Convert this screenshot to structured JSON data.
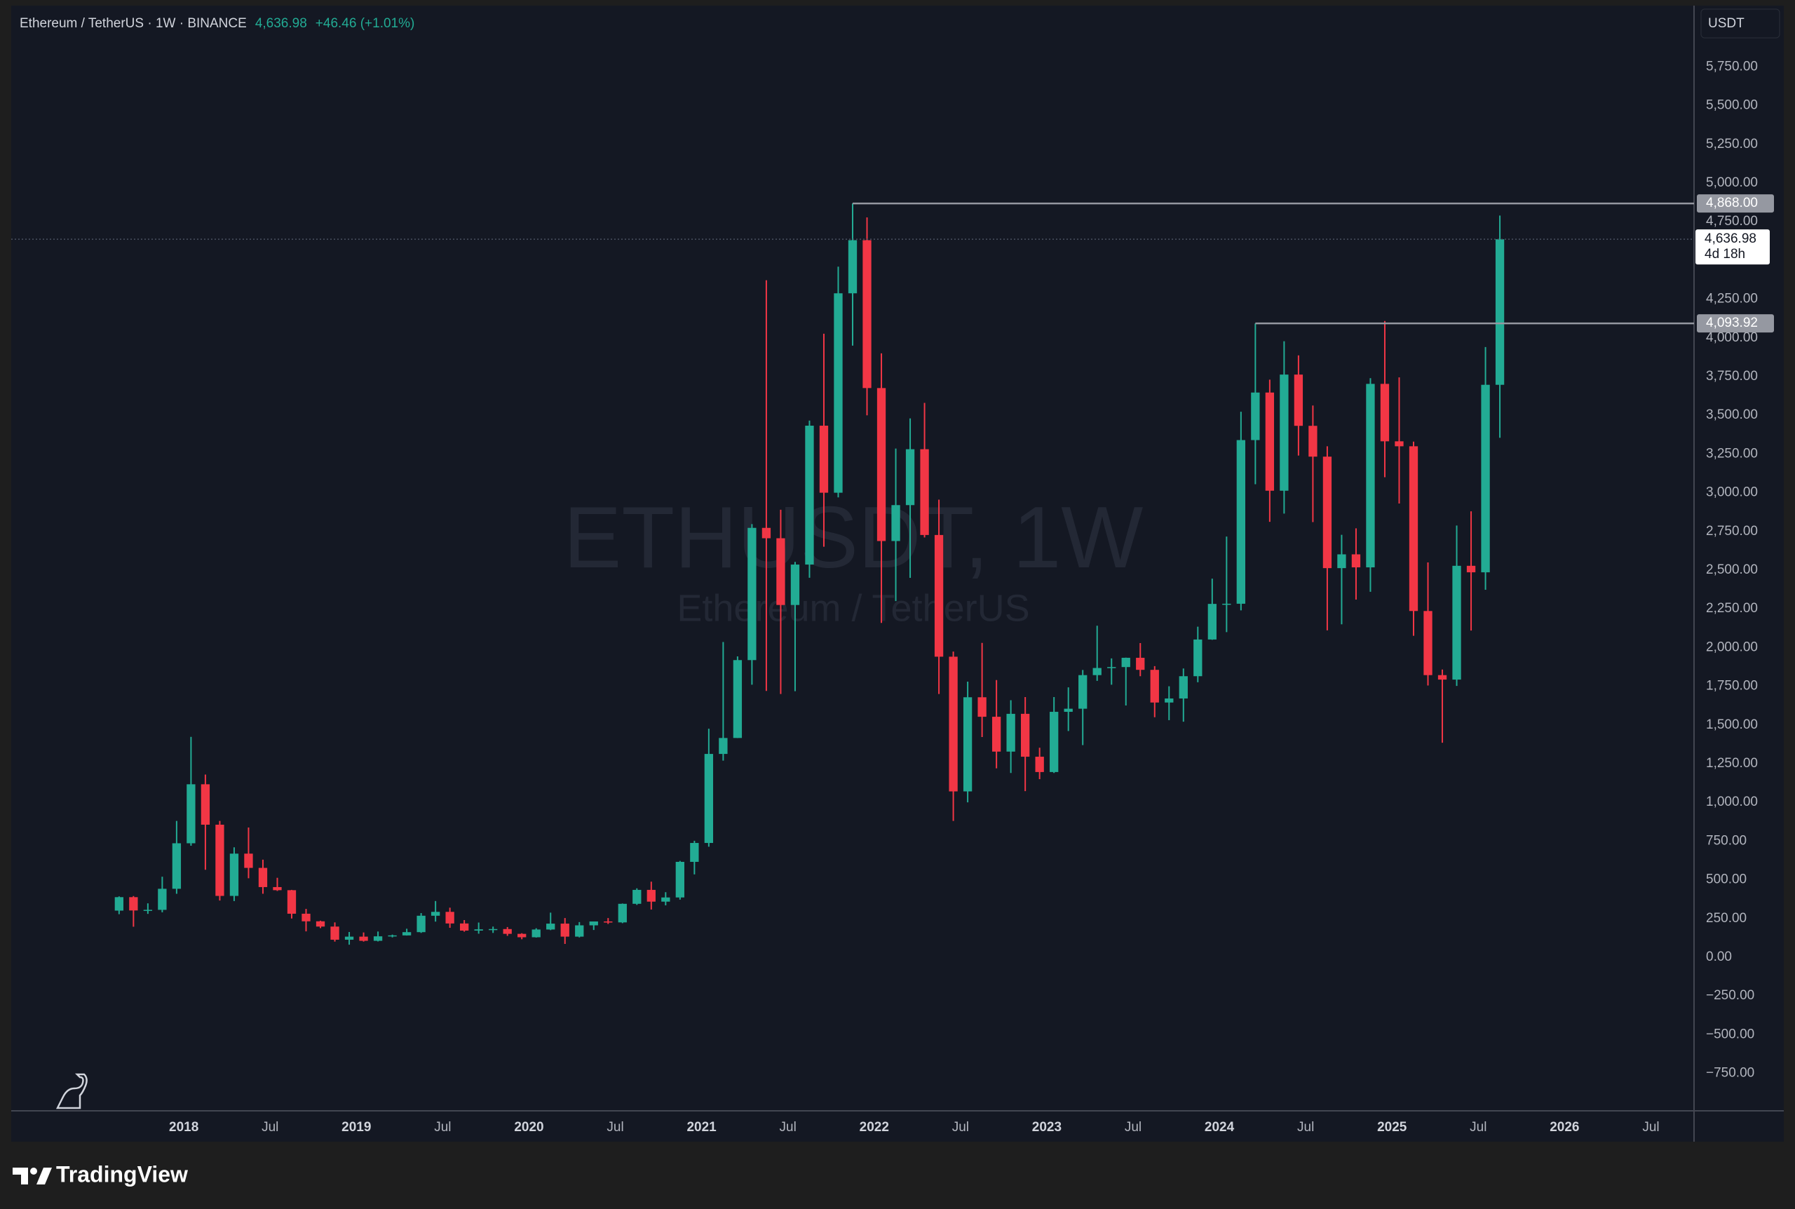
{
  "chart_data": {
    "type": "candlestick",
    "title": "Ethereum / TetherUS · 1W · BINANCE",
    "change": "+46.46 (+1.01%)",
    "currency_button": "USDT",
    "watermark": "ETHUSDT, 1W",
    "watermark_subtitle": "Ethereum / TetherUS",
    "brand": "TradingView",
    "up_color": "#22ab94",
    "down_color": "#f23645",
    "x": [
      "2017-08",
      "2017-09",
      "2017-10",
      "2017-11",
      "2017-12",
      "2018-01",
      "2018-02",
      "2018-03",
      "2018-04",
      "2018-05",
      "2018-06",
      "2018-07",
      "2018-08",
      "2018-09",
      "2018-10",
      "2018-11",
      "2018-12",
      "2019-01",
      "2019-02",
      "2019-03",
      "2019-04",
      "2019-05",
      "2019-06",
      "2019-07",
      "2019-08",
      "2019-09",
      "2019-10",
      "2019-11",
      "2019-12",
      "2020-01",
      "2020-02",
      "2020-03",
      "2020-04",
      "2020-05",
      "2020-06",
      "2020-07",
      "2020-08",
      "2020-09",
      "2020-10",
      "2020-11",
      "2020-12",
      "2021-01",
      "2021-02",
      "2021-03",
      "2021-04",
      "2021-05",
      "2021-06",
      "2021-07",
      "2021-08",
      "2021-09",
      "2021-10",
      "2021-11",
      "2021-12",
      "2022-01",
      "2022-02",
      "2022-03",
      "2022-04",
      "2022-05",
      "2022-06",
      "2022-07",
      "2022-08",
      "2022-09",
      "2022-10",
      "2022-11",
      "2022-12",
      "2023-01",
      "2023-02",
      "2023-03",
      "2023-04",
      "2023-05",
      "2023-06",
      "2023-07",
      "2023-08",
      "2023-09",
      "2023-10",
      "2023-11",
      "2023-12",
      "2024-01",
      "2024-02",
      "2024-03",
      "2024-04",
      "2024-05",
      "2024-06",
      "2024-07",
      "2024-08",
      "2024-09",
      "2024-10",
      "2024-11",
      "2024-12",
      "2025-01",
      "2025-02",
      "2025-03",
      "2025-04",
      "2025-05",
      "2025-06",
      "2025-07",
      "2025-08"
    ],
    "open": [
      301,
      388,
      302,
      306,
      442,
      736,
      1117,
      856,
      396,
      669,
      577,
      453,
      433,
      281,
      232,
      198,
      113,
      133,
      106,
      135,
      141,
      162,
      268,
      293,
      218,
      172,
      180,
      182,
      151,
      129,
      179,
      217,
      133,
      206,
      231,
      225,
      345,
      435,
      359,
      386,
      616,
      738,
      1313,
      1416,
      1919,
      2773,
      2706,
      2275,
      2536,
      3433,
      3000,
      4288,
      4631,
      3676,
      2688,
      2920,
      3281,
      2727,
      1941,
      1071,
      1679,
      1553,
      1328,
      1572,
      1295,
      1196,
      1585,
      1605,
      1822,
      1868,
      1874,
      1934,
      1856,
      1645,
      1671,
      1815,
      2052,
      2282,
      2283,
      3340,
      3647,
      3013,
      3763,
      3432,
      3233,
      2513,
      2602,
      2518,
      3703,
      3332,
      3300,
      2236,
      1822,
      1793,
      2528,
      2486,
      3697
    ],
    "high": [
      393,
      395,
      348,
      520,
      880,
      1423,
      1180,
      880,
      710,
      838,
      630,
      513,
      435,
      312,
      236,
      225,
      163,
      160,
      166,
      146,
      184,
      285,
      363,
      320,
      240,
      224,
      198,
      195,
      155,
      187,
      288,
      253,
      227,
      228,
      253,
      347,
      445,
      488,
      420,
      622,
      752,
      1476,
      2036,
      1943,
      2797,
      4372,
      2890,
      2553,
      3466,
      4027,
      4460,
      4868,
      4778,
      3900,
      3285,
      3480,
      3580,
      2955,
      1974,
      1780,
      2030,
      1790,
      1660,
      1680,
      1353,
      1680,
      1743,
      1855,
      2141,
      1930,
      1935,
      2029,
      1880,
      1750,
      1865,
      2135,
      2445,
      2717,
      3523,
      4093,
      3730,
      3978,
      3887,
      3563,
      3300,
      2728,
      2770,
      3740,
      4109,
      3745,
      3330,
      2550,
      1858,
      2788,
      2880,
      3941,
      4790
    ],
    "low": [
      278,
      197,
      280,
      290,
      410,
      720,
      565,
      366,
      363,
      510,
      410,
      428,
      250,
      167,
      188,
      101,
      81,
      101,
      102,
      128,
      140,
      157,
      230,
      190,
      165,
      152,
      157,
      138,
      116,
      127,
      175,
      86,
      128,
      176,
      215,
      220,
      338,
      308,
      335,
      372,
      535,
      714,
      1270,
      1416,
      1760,
      1720,
      1700,
      1718,
      2451,
      2651,
      2970,
      3950,
      3500,
      2159,
      2300,
      2450,
      2711,
      1700,
      880,
      1000,
      1422,
      1220,
      1190,
      1073,
      1150,
      1190,
      1461,
      1370,
      1785,
      1760,
      1626,
      1815,
      1550,
      1531,
      1521,
      1776,
      2050,
      2100,
      2240,
      3055,
      2812,
      2865,
      3240,
      2810,
      2111,
      2150,
      2310,
      2360,
      3100,
      2930,
      2076,
      1755,
      1385,
      1752,
      2110,
      2373,
      3355
    ],
    "close": [
      388,
      302,
      306,
      442,
      736,
      1117,
      856,
      396,
      669,
      577,
      453,
      433,
      281,
      232,
      198,
      113,
      133,
      106,
      135,
      141,
      162,
      268,
      293,
      218,
      172,
      180,
      182,
      151,
      129,
      179,
      217,
      133,
      206,
      231,
      225,
      345,
      435,
      359,
      386,
      616,
      738,
      1313,
      1416,
      1919,
      2773,
      2706,
      2275,
      2536,
      3433,
      3000,
      4288,
      4631,
      3676,
      2688,
      2920,
      3281,
      2727,
      1941,
      1071,
      1679,
      1553,
      1328,
      1572,
      1295,
      1196,
      1585,
      1605,
      1822,
      1868,
      1874,
      1934,
      1856,
      1645,
      1671,
      1815,
      2052,
      2282,
      2283,
      3340,
      3647,
      3013,
      3763,
      3432,
      3233,
      2513,
      2602,
      2518,
      3703,
      3332,
      3300,
      2236,
      1822,
      1793,
      2528,
      2486,
      3697,
      4636.98
    ],
    "xlim": [
      "2017-01",
      "2026-10"
    ],
    "xticks": [
      {
        "value": "2018-01",
        "label": "2018"
      },
      {
        "value": "2018-07",
        "label": "Jul"
      },
      {
        "value": "2019-01",
        "label": "2019"
      },
      {
        "value": "2019-07",
        "label": "Jul"
      },
      {
        "value": "2020-01",
        "label": "2020"
      },
      {
        "value": "2020-07",
        "label": "Jul"
      },
      {
        "value": "2021-01",
        "label": "2021"
      },
      {
        "value": "2021-07",
        "label": "Jul"
      },
      {
        "value": "2022-01",
        "label": "2022"
      },
      {
        "value": "2022-07",
        "label": "Jul"
      },
      {
        "value": "2023-01",
        "label": "2023"
      },
      {
        "value": "2023-07",
        "label": "Jul"
      },
      {
        "value": "2024-01",
        "label": "2024"
      },
      {
        "value": "2024-07",
        "label": "Jul"
      },
      {
        "value": "2025-01",
        "label": "2025"
      },
      {
        "value": "2025-07",
        "label": "Jul"
      },
      {
        "value": "2026-01",
        "label": "2026"
      },
      {
        "value": "2026-07",
        "label": "Jul"
      }
    ],
    "ylim": [
      -992,
      6146
    ],
    "yticks": [
      {
        "value": -750,
        "label": "−750.00"
      },
      {
        "value": -500,
        "label": "−500.00"
      },
      {
        "value": -250,
        "label": "−250.00"
      },
      {
        "value": 0,
        "label": "0.00"
      },
      {
        "value": 250,
        "label": "250.00"
      },
      {
        "value": 500,
        "label": "500.00"
      },
      {
        "value": 750,
        "label": "750.00"
      },
      {
        "value": 1000,
        "label": "1,000.00"
      },
      {
        "value": 1250,
        "label": "1,250.00"
      },
      {
        "value": 1500,
        "label": "1,500.00"
      },
      {
        "value": 1750,
        "label": "1,750.00"
      },
      {
        "value": 2000,
        "label": "2,000.00"
      },
      {
        "value": 2250,
        "label": "2,250.00"
      },
      {
        "value": 2500,
        "label": "2,500.00"
      },
      {
        "value": 2750,
        "label": "2,750.00"
      },
      {
        "value": 3000,
        "label": "3,000.00"
      },
      {
        "value": 3250,
        "label": "3,250.00"
      },
      {
        "value": 3500,
        "label": "3,500.00"
      },
      {
        "value": 3750,
        "label": "3,750.00"
      },
      {
        "value": 4000,
        "label": "4,000.00"
      },
      {
        "value": 4250,
        "label": "4,250.00"
      },
      {
        "value": 4750,
        "label": "4,750.00"
      },
      {
        "value": 5000,
        "label": "5,000.00"
      },
      {
        "value": 5250,
        "label": "5,250.00"
      },
      {
        "value": 5500,
        "label": "5,500.00"
      },
      {
        "value": 5750,
        "label": "5,750.00"
      }
    ],
    "levels": [
      {
        "value": 4868,
        "label": "4,868.00",
        "start": "2021-11"
      },
      {
        "value": 4093.92,
        "label": "4,093.92",
        "start": "2024-03"
      }
    ],
    "last_price": {
      "value": 4636.98,
      "label": "4,636.98",
      "countdown": "4d 18h"
    },
    "grid": false
  }
}
